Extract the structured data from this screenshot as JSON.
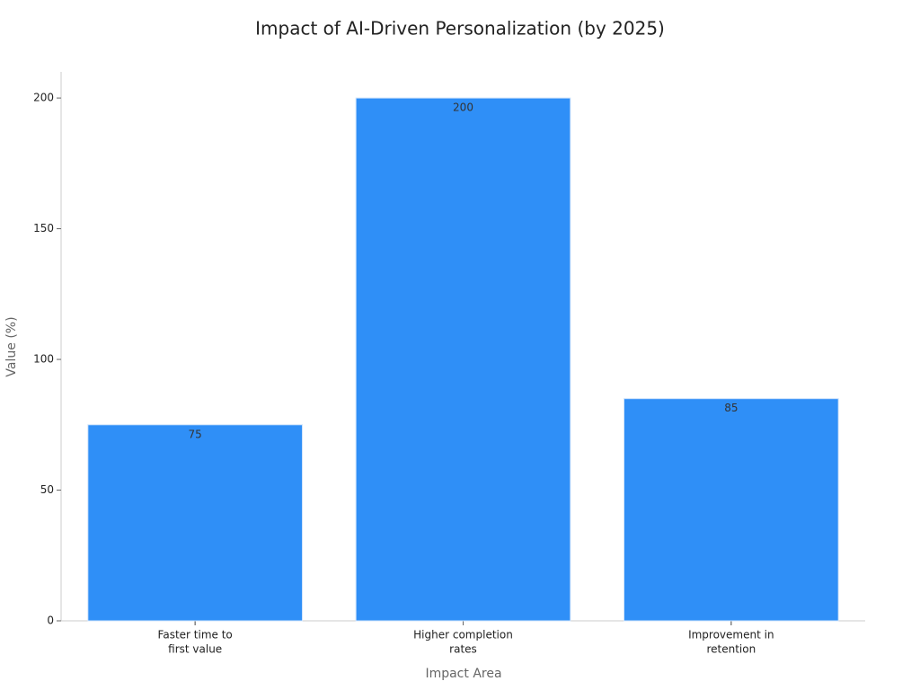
{
  "chart_data": {
    "type": "bar",
    "title": "Impact of AI-Driven Personalization (by 2025)",
    "x_label": "Impact Area",
    "y_label": "Value (%)",
    "categories": [
      [
        "Faster time to",
        "first value"
      ],
      [
        "Higher completion",
        "rates"
      ],
      [
        "Improvement in",
        "retention"
      ]
    ],
    "values": [
      75,
      200,
      85
    ],
    "color": "#2f8ff7",
    "ylim": [
      0,
      210
    ],
    "yticks": [
      0,
      50,
      100,
      150,
      200
    ],
    "grid": false
  }
}
